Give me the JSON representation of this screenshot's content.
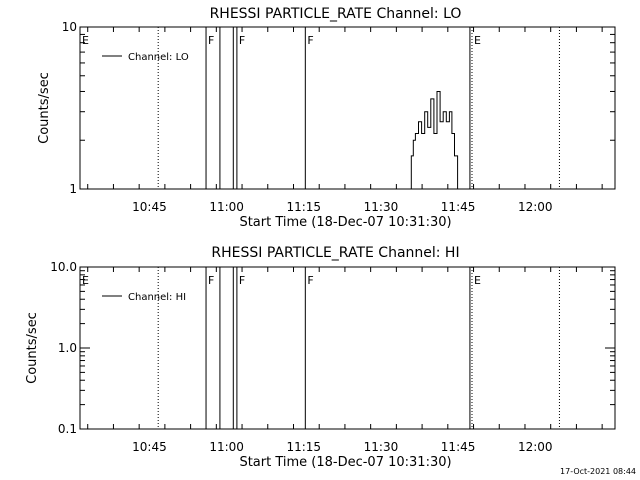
{
  "footer_timestamp": "17-Oct-2021 08:44",
  "chart_data": [
    {
      "type": "line",
      "title": "RHESSI PARTICLE_RATE Channel: LO",
      "xlabel": "Start Time (18-Dec-07 10:31:30)",
      "ylabel": "Counts/sec",
      "y_scale": "log",
      "ylim": [
        1,
        10
      ],
      "y_ticks": [
        {
          "value": 1,
          "label": "1"
        },
        {
          "value": 10,
          "label": "10"
        }
      ],
      "x_unit": "minutes since 10:31:30",
      "xlim": [
        0,
        104
      ],
      "x_ticks": [
        {
          "value": 13.5,
          "label": "10:45"
        },
        {
          "value": 28.5,
          "label": "11:00"
        },
        {
          "value": 43.5,
          "label": "11:15"
        },
        {
          "value": 58.5,
          "label": "11:30"
        },
        {
          "value": 73.5,
          "label": "11:45"
        },
        {
          "value": 88.5,
          "label": "12:00"
        }
      ],
      "legend": {
        "label": "Channel: LO",
        "position": "top-left"
      },
      "markers": [
        {
          "x": 0,
          "label": "E",
          "style": "solid"
        },
        {
          "x": 15.2,
          "label": "",
          "style": "dotted"
        },
        {
          "x": 24.5,
          "label": "F",
          "style": "solid"
        },
        {
          "x": 27.2,
          "label": "",
          "style": "solid"
        },
        {
          "x": 29.8,
          "label": "",
          "style": "solid"
        },
        {
          "x": 30.5,
          "label": "F",
          "style": "solid"
        },
        {
          "x": 43.8,
          "label": "F",
          "style": "solid"
        },
        {
          "x": 75.8,
          "label": "",
          "style": "solid"
        },
        {
          "x": 76.2,
          "label": "E",
          "style": "dotted"
        },
        {
          "x": 93.2,
          "label": "",
          "style": "dotted"
        }
      ],
      "series": [
        {
          "x": [
            64.4,
            64.4,
            64.8,
            64.8,
            65.2,
            65.2,
            65.8,
            65.8,
            66.4,
            66.4,
            67.0,
            67.0,
            67.6,
            67.6,
            68.2,
            68.2,
            68.8,
            68.8,
            69.4,
            69.4,
            70.0,
            70.0,
            70.6,
            70.6,
            71.2,
            71.2,
            71.8,
            71.8,
            72.3,
            72.3,
            72.8,
            72.8,
            73.4,
            73.4
          ],
          "y": [
            1.0,
            1.6,
            1.6,
            2.0,
            2.0,
            2.2,
            2.2,
            2.6,
            2.6,
            2.2,
            2.2,
            3.0,
            3.0,
            2.4,
            2.4,
            3.6,
            3.6,
            2.2,
            2.2,
            4.0,
            4.0,
            2.6,
            2.6,
            3.0,
            3.0,
            2.6,
            2.6,
            3.0,
            3.0,
            2.2,
            2.2,
            1.6,
            1.6,
            1.0
          ]
        }
      ]
    },
    {
      "type": "line",
      "title": "RHESSI PARTICLE_RATE Channel: HI",
      "xlabel": "Start Time (18-Dec-07 10:31:30)",
      "ylabel": "Counts/sec",
      "y_scale": "log",
      "ylim": [
        0.1,
        10
      ],
      "y_ticks": [
        {
          "value": 0.1,
          "label": "0.1"
        },
        {
          "value": 1,
          "label": "1.0"
        },
        {
          "value": 10,
          "label": "10.0"
        }
      ],
      "x_unit": "minutes since 10:31:30",
      "xlim": [
        0,
        104
      ],
      "x_ticks": [
        {
          "value": 13.5,
          "label": "10:45"
        },
        {
          "value": 28.5,
          "label": "11:00"
        },
        {
          "value": 43.5,
          "label": "11:15"
        },
        {
          "value": 58.5,
          "label": "11:30"
        },
        {
          "value": 73.5,
          "label": "11:45"
        },
        {
          "value": 88.5,
          "label": "12:00"
        }
      ],
      "legend": {
        "label": "Channel: HI",
        "position": "top-left"
      },
      "markers": [
        {
          "x": 0,
          "label": "E",
          "style": "solid"
        },
        {
          "x": 15.2,
          "label": "",
          "style": "dotted"
        },
        {
          "x": 24.5,
          "label": "F",
          "style": "solid"
        },
        {
          "x": 27.2,
          "label": "",
          "style": "solid"
        },
        {
          "x": 29.8,
          "label": "",
          "style": "solid"
        },
        {
          "x": 30.5,
          "label": "F",
          "style": "solid"
        },
        {
          "x": 43.8,
          "label": "F",
          "style": "solid"
        },
        {
          "x": 75.8,
          "label": "",
          "style": "solid"
        },
        {
          "x": 76.2,
          "label": "E",
          "style": "dotted"
        },
        {
          "x": 93.2,
          "label": "",
          "style": "dotted"
        }
      ],
      "series": []
    }
  ]
}
